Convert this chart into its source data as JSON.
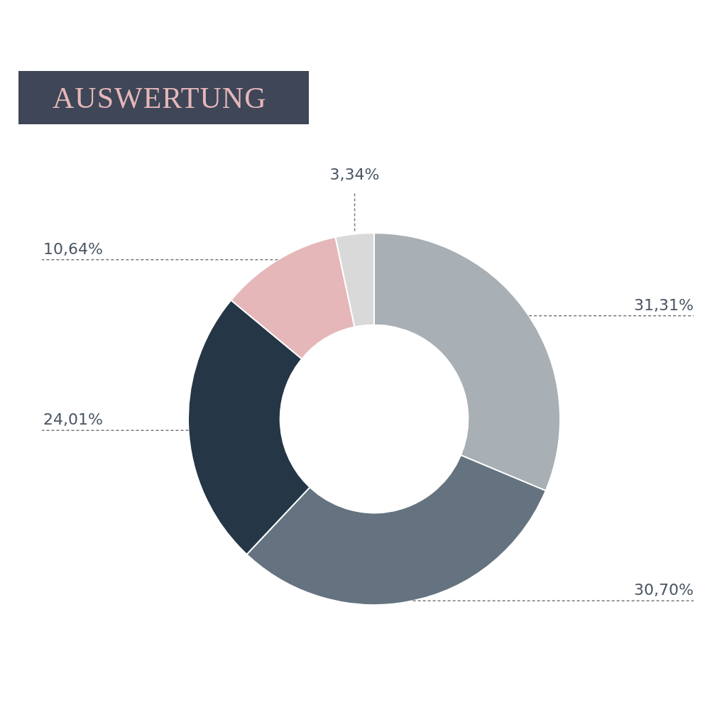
{
  "chart_data": {
    "type": "donut",
    "title": "AUSWERTUNG",
    "categories": [
      null,
      null,
      null,
      null,
      null
    ],
    "values": [
      31.31,
      30.7,
      24.01,
      10.64,
      3.34
    ],
    "colors": [
      "#a8afb5",
      "#64737f",
      "#253646",
      "#e5b7b9",
      "#d9d9d9"
    ],
    "value_labels": [
      "31,31%",
      "30,70%",
      "24,01%",
      "10,64%",
      "3,34%"
    ]
  }
}
